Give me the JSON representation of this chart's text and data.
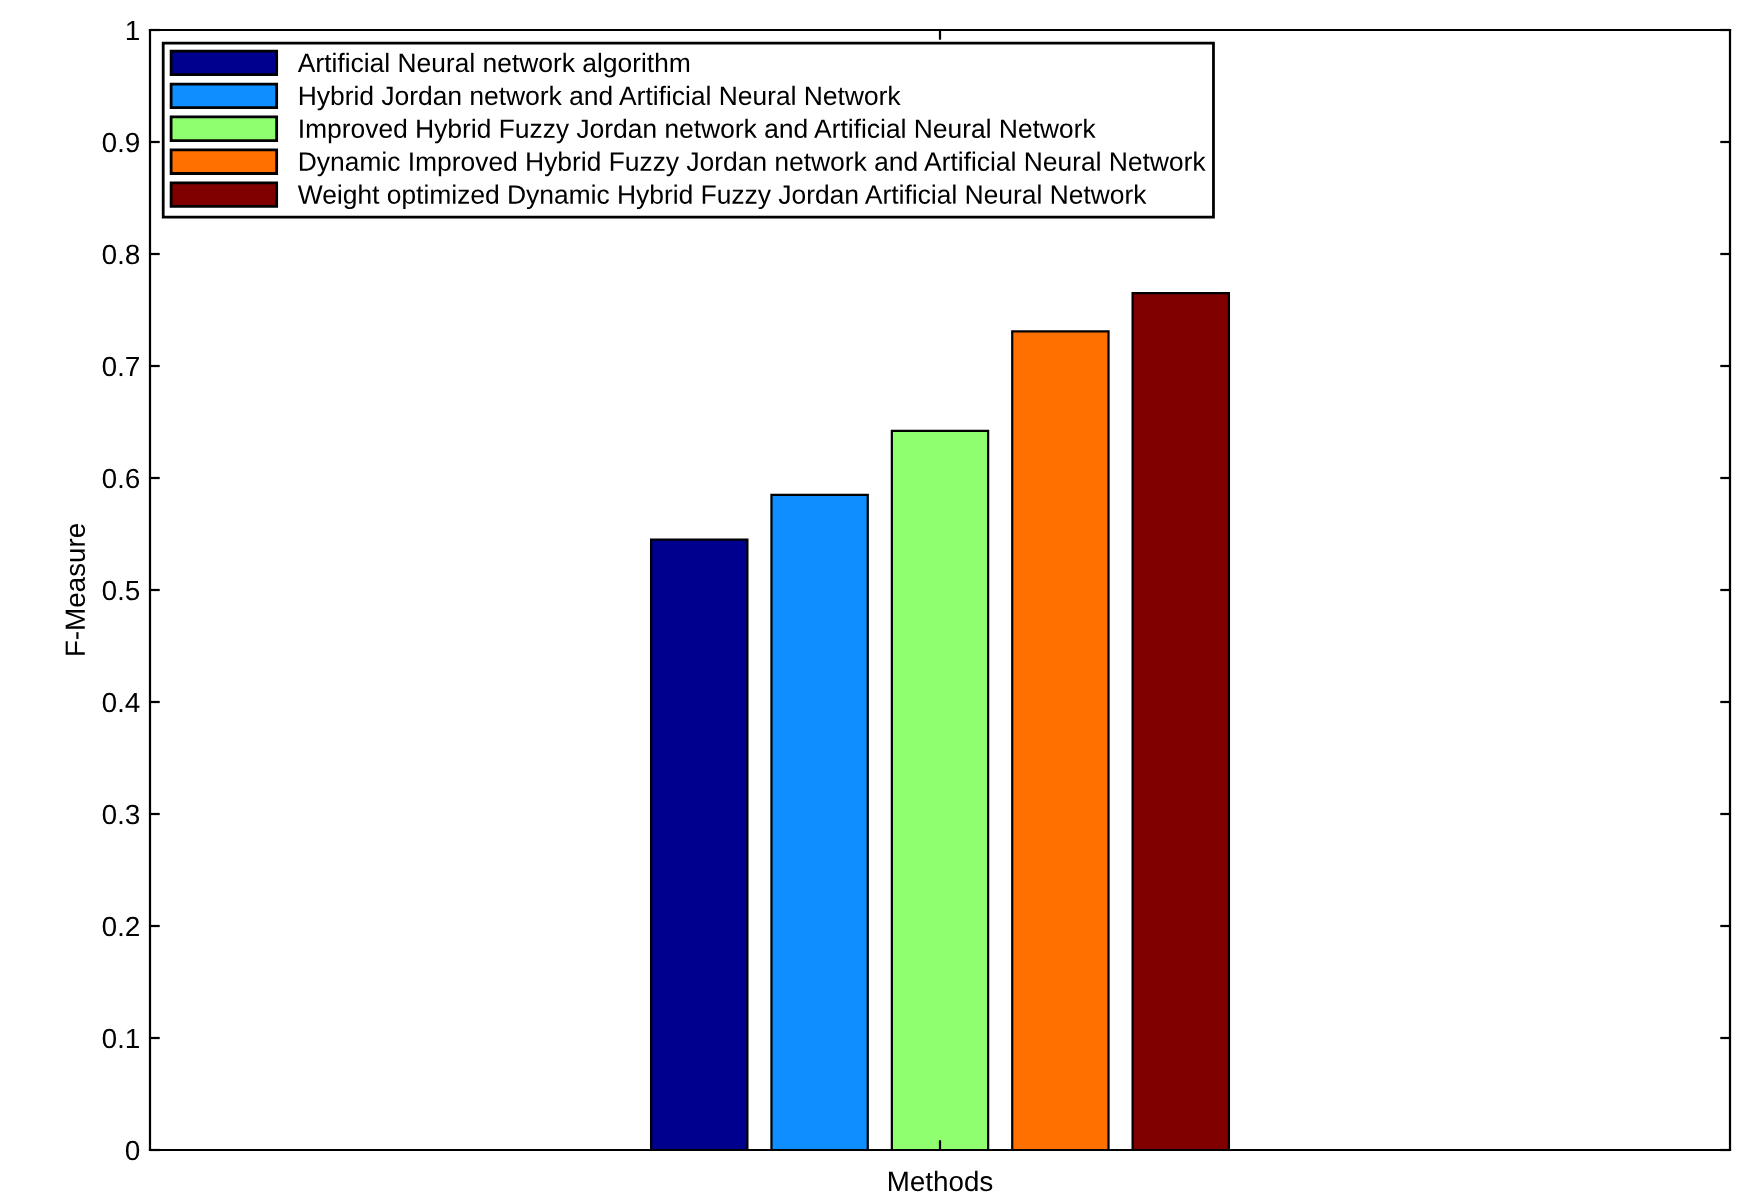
{
  "chart_data": {
    "type": "bar",
    "xlabel": "Methods",
    "ylabel": "F-Measure",
    "categories": [
      null
    ],
    "series": [
      {
        "name": "Artificial Neural network algorithm",
        "color": "#00008f",
        "values": [
          0.545
        ]
      },
      {
        "name": "Hybrid Jordan network and Artificial Neural Network",
        "color": "#0f8fff",
        "values": [
          0.585
        ]
      },
      {
        "name": "Improved Hybrid Fuzzy Jordan network and Artificial Neural Network",
        "color": "#8fff70",
        "values": [
          0.642
        ]
      },
      {
        "name": "Dynamic Improved Hybrid Fuzzy Jordan network and Artificial Neural Network",
        "color": "#ff7000",
        "values": [
          0.731
        ]
      },
      {
        "name": "Weight optimized Dynamic Hybrid Fuzzy Jordan Artificial Neural Network",
        "color": "#800000",
        "values": [
          0.765
        ]
      }
    ],
    "ylim": [
      0,
      1
    ],
    "yticks": [
      0,
      0.1,
      0.2,
      0.3,
      0.4,
      0.5,
      0.6,
      0.7,
      0.8,
      0.9,
      1
    ],
    "grid": false,
    "legend": "top left"
  }
}
